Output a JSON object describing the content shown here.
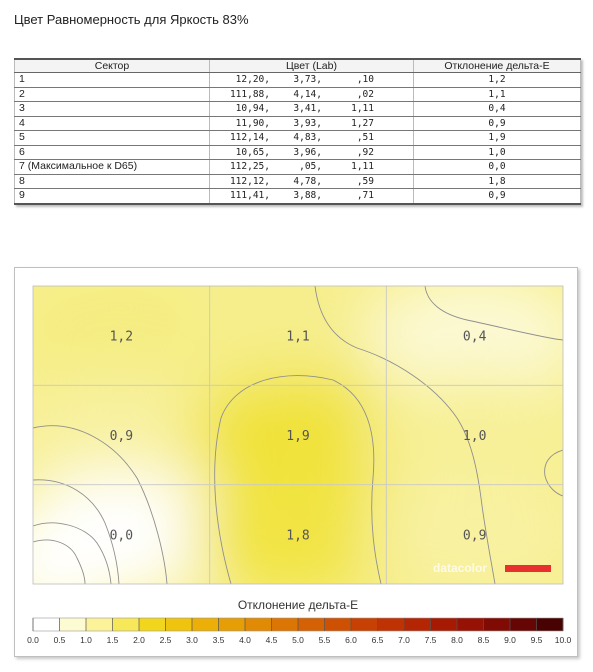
{
  "title": "Цвет Равномерность для Яркость 83%",
  "table": {
    "headers": [
      "Сектор",
      "Цвет (Lab)",
      "Отклонение дельта-E"
    ],
    "rows": [
      {
        "sector": "1",
        "L": "12,20,",
        "a": "3,73,",
        "b": ",10",
        "de": "1,2"
      },
      {
        "sector": "2",
        "L": "111,88,",
        "a": "4,14,",
        "b": ",02",
        "de": "1,1"
      },
      {
        "sector": "3",
        "L": "10,94,",
        "a": "3,41,",
        "b": "1,11",
        "de": "0,4"
      },
      {
        "sector": "4",
        "L": "11,90,",
        "a": "3,93,",
        "b": "1,27",
        "de": "0,9"
      },
      {
        "sector": "5",
        "L": "112,14,",
        "a": "4,83,",
        "b": ",51",
        "de": "1,9"
      },
      {
        "sector": "6",
        "L": "10,65,",
        "a": "3,96,",
        "b": ",92",
        "de": "1,0"
      },
      {
        "sector": "7 (Максимальное к D65)",
        "L": "112,25,",
        "a": ",05,",
        "b": "1,11",
        "de": "0,0"
      },
      {
        "sector": "8",
        "L": "112,12,",
        "a": "4,78,",
        "b": ",59",
        "de": "1,8"
      },
      {
        "sector": "9",
        "L": "111,41,",
        "a": "3,88,",
        "b": ",71",
        "de": "0,9"
      }
    ]
  },
  "chart_data": {
    "type": "heatmap",
    "grid": {
      "rows": 3,
      "cols": 3
    },
    "cells": [
      {
        "row": 0,
        "col": 0,
        "label": "1,2",
        "value": 1.2
      },
      {
        "row": 0,
        "col": 1,
        "label": "1,1",
        "value": 1.1
      },
      {
        "row": 0,
        "col": 2,
        "label": "0,4",
        "value": 0.4
      },
      {
        "row": 1,
        "col": 0,
        "label": "0,9",
        "value": 0.9
      },
      {
        "row": 1,
        "col": 1,
        "label": "1,9",
        "value": 1.9
      },
      {
        "row": 1,
        "col": 2,
        "label": "1,0",
        "value": 1.0
      },
      {
        "row": 2,
        "col": 0,
        "label": "0,0",
        "value": 0.0
      },
      {
        "row": 2,
        "col": 1,
        "label": "1,8",
        "value": 1.8
      },
      {
        "row": 2,
        "col": 2,
        "label": "0,9",
        "value": 0.9
      }
    ],
    "legend_title": "Отклонение дельта-E",
    "scale_range": [
      0,
      10
    ],
    "scale_ticks": [
      "0.0",
      "0.5",
      "1.0",
      "1.5",
      "2.0",
      "2.5",
      "3.0",
      "3.5",
      "4.0",
      "4.5",
      "5.0",
      "5.5",
      "6.0",
      "6.5",
      "7.0",
      "7.5",
      "8.0",
      "8.5",
      "9.0",
      "9.5",
      "10.0"
    ],
    "scale_colors": [
      "#ffffff",
      "#fdfbd2",
      "#fbf29a",
      "#f7e85a",
      "#f2d61e",
      "#efc40e",
      "#ebaf07",
      "#e69e06",
      "#e18a05",
      "#db7604",
      "#d46204",
      "#cd5003",
      "#c64103",
      "#be3203",
      "#b42503",
      "#a61a04",
      "#951204",
      "#7f0b04",
      "#650504",
      "#470201"
    ],
    "watermark": "datacolor",
    "brand_color": "#e8302e"
  }
}
